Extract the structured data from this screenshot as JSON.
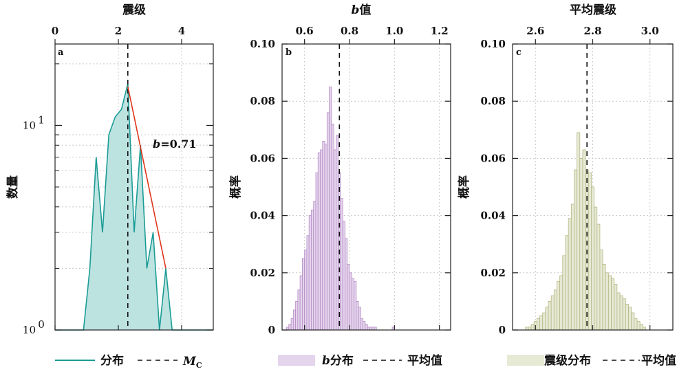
{
  "chart_data": [
    {
      "panel": "a",
      "type": "area",
      "top_axis_label": "震级",
      "ylabel": "数量",
      "y_scale": "log",
      "xlim": [
        0,
        5
      ],
      "ylim": [
        1,
        25
      ],
      "x_ticks": [
        "0",
        "2",
        "4"
      ],
      "y_ticks": [
        {
          "base": "10",
          "exp": "1"
        },
        {
          "base": "10",
          "exp": "0"
        }
      ],
      "x": [
        0.9,
        1.1,
        1.3,
        1.5,
        1.7,
        1.9,
        2.1,
        2.3,
        2.5,
        2.7,
        2.9,
        3.1,
        3.3,
        3.5,
        3.7
      ],
      "counts": [
        1,
        2,
        7,
        3,
        9,
        11,
        12,
        16,
        3,
        8,
        2,
        3,
        1,
        2,
        1
      ],
      "mc": 2.3,
      "mc_label": "M",
      "mc_subscript": "C",
      "fit_line": {
        "x": [
          2.3,
          3.5
        ],
        "y": [
          15.5,
          2.0
        ],
        "label_b": "b",
        "label_value": "=0.71"
      },
      "legend": [
        {
          "label": "分布",
          "style": "solid"
        },
        {
          "label": "",
          "style": "dashed"
        }
      ],
      "colors": {
        "line": "#1a9b95",
        "fill": "#bde3e1",
        "fit": "#e0351c"
      }
    },
    {
      "panel": "b",
      "type": "bar",
      "top_axis_label_prefix": "b",
      "top_axis_label": "值",
      "ylabel": "概率",
      "xlim": [
        0.5,
        1.25
      ],
      "ylim": [
        0,
        0.1
      ],
      "x_ticks": [
        "0.6",
        "0.8",
        "1.0",
        "1.2"
      ],
      "y_ticks": [
        "0",
        "0.02",
        "0.04",
        "0.06",
        "0.08",
        "0.10"
      ],
      "bin_start": 0.52,
      "bin_width": 0.01,
      "values": [
        0.001,
        0.002,
        0.004,
        0.007,
        0.01,
        0.014,
        0.019,
        0.025,
        0.028,
        0.033,
        0.04,
        0.042,
        0.045,
        0.055,
        0.062,
        0.063,
        0.066,
        0.065,
        0.076,
        0.085,
        0.072,
        0.063,
        0.068,
        0.055,
        0.046,
        0.038,
        0.032,
        0.023,
        0.02,
        0.018,
        0.017,
        0.01,
        0.008,
        0.004,
        0.003,
        0.002,
        0.001,
        0.001,
        0.001,
        0.001,
        0,
        0,
        0,
        0,
        0,
        0,
        0,
        0.001
      ],
      "mean": 0.755,
      "legend": [
        {
          "label_prefix": "b",
          "label": "分布",
          "style": "patch"
        },
        {
          "label": "平均值",
          "style": "dashed"
        }
      ],
      "colors": {
        "fill": "#e4d4ec",
        "edge": "#b68cc6"
      }
    },
    {
      "panel": "c",
      "type": "bar",
      "top_axis_label": "平均震级",
      "ylabel": "概率",
      "xlim": [
        2.52,
        3.08
      ],
      "ylim": [
        0,
        0.1
      ],
      "x_ticks": [
        "2.6",
        "2.8",
        "3.0"
      ],
      "y_ticks": [
        "0",
        "0.02",
        "0.04",
        "0.06",
        "0.08",
        "0.10"
      ],
      "bin_start": 2.565,
      "bin_width": 0.01,
      "values": [
        0.001,
        0.001,
        0.002,
        0.003,
        0.004,
        0.005,
        0.006,
        0.008,
        0.01,
        0.012,
        0.014,
        0.017,
        0.019,
        0.026,
        0.033,
        0.039,
        0.044,
        0.056,
        0.069,
        0.06,
        0.063,
        0.056,
        0.055,
        0.05,
        0.043,
        0.037,
        0.028,
        0.023,
        0.02,
        0.019,
        0.018,
        0.016,
        0.013,
        0.012,
        0.011,
        0.009,
        0.008,
        0.006,
        0.004,
        0.003,
        0.002,
        0.001
      ],
      "mean": 2.78,
      "legend": [
        {
          "label": "震级分布",
          "style": "patch"
        },
        {
          "label": "平均值",
          "style": "dashed"
        }
      ],
      "colors": {
        "fill": "#e6e9d4",
        "edge": "#b6b884"
      }
    }
  ]
}
